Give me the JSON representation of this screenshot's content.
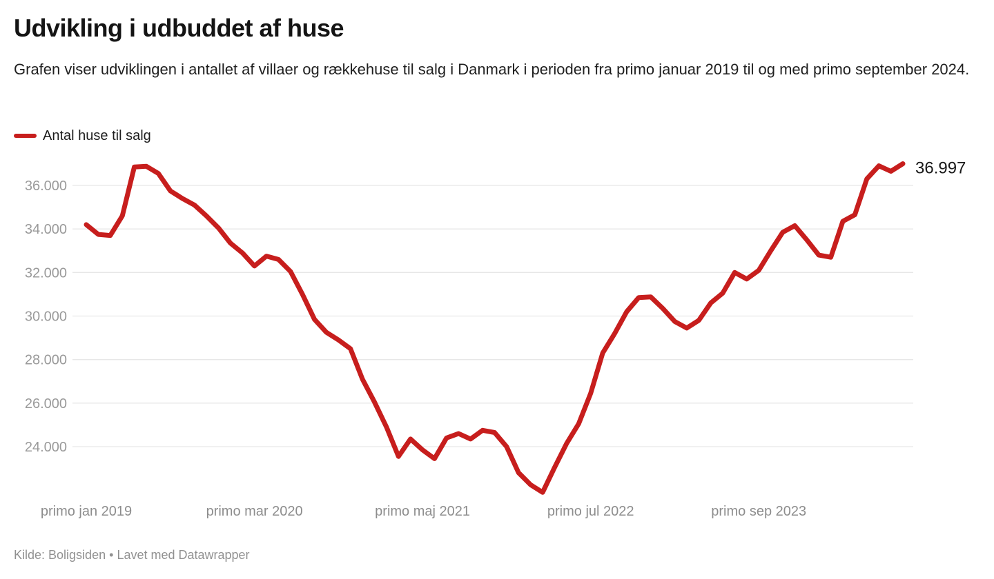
{
  "header": {
    "title": "Udvikling i udbuddet af huse",
    "description": "Grafen viser udviklingen i antallet af villaer og rækkehuse til salg i Danmark i perioden fra primo januar 2019 til og med primo september 2024."
  },
  "legend": {
    "label": "Antal huse til salg"
  },
  "footer": {
    "source_text": "Kilde: Boligsiden",
    "separator": "•",
    "attribution": "Lavet med Datawrapper"
  },
  "colors": {
    "line": "#c71e1d",
    "gridline": "#e7e7e7",
    "y_label": "#9a9a9a",
    "x_label": "#8d8d8d",
    "value_label": "#1a1a1a"
  },
  "chart_data": {
    "type": "line",
    "series_name": "Antal huse til salg",
    "x_description": "monthly, primo jan 2019 to primo sep 2024",
    "values": [
      34200,
      33750,
      33700,
      34600,
      36850,
      36880,
      36550,
      35750,
      35400,
      35100,
      34600,
      34050,
      33350,
      32900,
      32300,
      32750,
      32600,
      32050,
      31000,
      29850,
      29250,
      28900,
      28500,
      27100,
      26050,
      24900,
      23550,
      24350,
      23850,
      23450,
      24400,
      24600,
      24350,
      24750,
      24650,
      24000,
      22800,
      22250,
      21900,
      23050,
      24150,
      25050,
      26450,
      28300,
      29200,
      30200,
      30850,
      30880,
      30350,
      29750,
      29450,
      29800,
      30600,
      31050,
      32000,
      31700,
      32100,
      33000,
      33850,
      34150,
      33500,
      32800,
      32700,
      34350,
      34650,
      36300,
      36900,
      36650,
      36997
    ],
    "end_label": "36.997",
    "x_ticks": [
      {
        "month_index": 0,
        "label": "primo jan 2019"
      },
      {
        "month_index": 14,
        "label": "primo mar 2020"
      },
      {
        "month_index": 28,
        "label": "primo maj 2021"
      },
      {
        "month_index": 42,
        "label": "primo jul 2022"
      },
      {
        "month_index": 56,
        "label": "primo sep 2023"
      }
    ],
    "y_ticks": [
      {
        "value": 24000,
        "label": "24.000"
      },
      {
        "value": 26000,
        "label": "26.000"
      },
      {
        "value": 28000,
        "label": "28.000"
      },
      {
        "value": 30000,
        "label": "30.000"
      },
      {
        "value": 32000,
        "label": "32.000"
      },
      {
        "value": 34000,
        "label": "34.000"
      },
      {
        "value": 36000,
        "label": "36.000"
      }
    ],
    "ylim": [
      21500,
      37500
    ],
    "grid": "horizontal-only",
    "legend_position": "top-left"
  }
}
